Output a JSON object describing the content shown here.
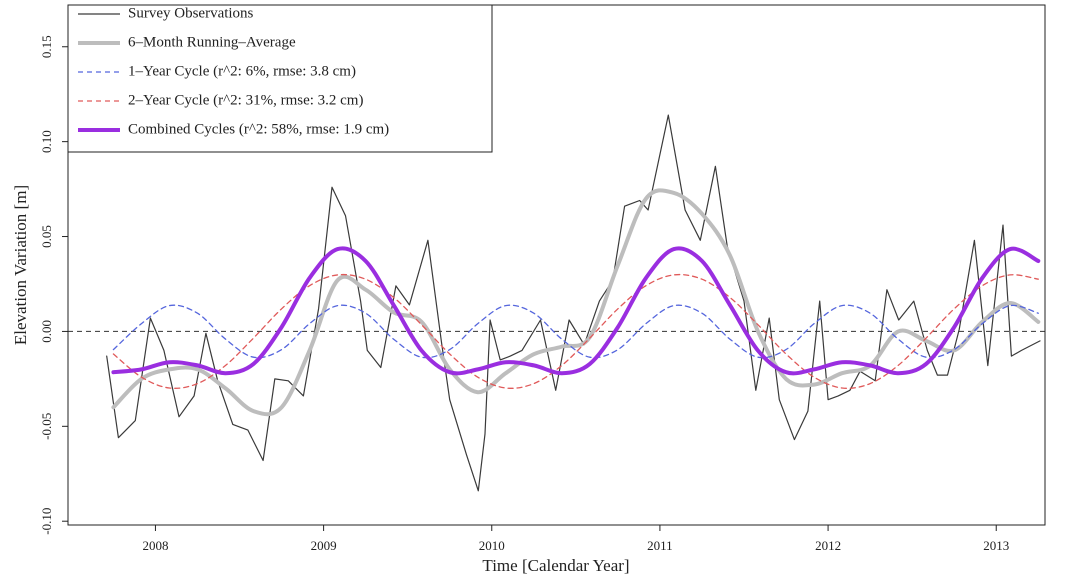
{
  "chart_data": {
    "type": "line",
    "xlabel": "Time [Calendar Year]",
    "ylabel": "Elevation Variation [m]",
    "xlim": [
      2007.48,
      2013.29
    ],
    "ylim": [
      -0.102,
      0.172
    ],
    "xticks": [
      2008,
      2009,
      2010,
      2011,
      2012,
      2013
    ],
    "yticks": [
      {
        "value": -0.1,
        "label": "-0.10"
      },
      -0.05,
      {
        "value": 0,
        "label": "0.00"
      },
      0.05,
      {
        "value": 0.1,
        "label": "0.10"
      },
      0.15
    ],
    "reference_line": 0,
    "legend": "upper left",
    "x": [
      2007.75,
      2007.917,
      2008.083,
      2008.25,
      2008.417,
      2008.583,
      2008.75,
      2008.917,
      2009.083,
      2009.25,
      2009.417,
      2009.583,
      2009.75,
      2009.917,
      2010.083,
      2010.25,
      2010.417,
      2010.583,
      2010.75,
      2010.917,
      2011.083,
      2011.25,
      2011.417,
      2011.583,
      2011.75,
      2011.917,
      2012.083,
      2012.25,
      2012.417,
      2012.583,
      2012.75,
      2012.917,
      2013.083,
      2013.25
    ],
    "series": [
      {
        "name": "Survey Observations",
        "color": "#3a3a3a",
        "width": 1.2,
        "dash": false,
        "smooth": false,
        "x": [
          2007.71,
          2007.78,
          2007.88,
          2007.97,
          2008.05,
          2008.14,
          2008.23,
          2008.3,
          2008.37,
          2008.46,
          2008.55,
          2008.64,
          2008.71,
          2008.79,
          2008.88,
          2008.97,
          2009.05,
          2009.13,
          2009.22,
          2009.26,
          2009.34,
          2009.43,
          2009.51,
          2009.62,
          2009.7,
          2009.75,
          2009.85,
          2009.92,
          2009.96,
          2009.99,
          2010.05,
          2010.11,
          2010.18,
          2010.29,
          2010.38,
          2010.46,
          2010.55,
          2010.64,
          2010.72,
          2010.79,
          2010.88,
          2010.93,
          2011.05,
          2011.15,
          2011.24,
          2011.33,
          2011.4,
          2011.5,
          2011.57,
          2011.65,
          2011.71,
          2011.8,
          2011.88,
          2011.95,
          2012.0,
          2012.06,
          2012.13,
          2012.19,
          2012.28,
          2012.35,
          2012.42,
          2012.51,
          2012.59,
          2012.65,
          2012.71,
          2012.78,
          2012.87,
          2012.95,
          2013.04,
          2013.09,
          2013.15,
          2013.26
        ],
        "values": [
          -0.013,
          -0.056,
          -0.047,
          0.007,
          -0.01,
          -0.045,
          -0.034,
          -0.001,
          -0.026,
          -0.049,
          -0.052,
          -0.068,
          -0.025,
          -0.026,
          -0.034,
          0.012,
          0.076,
          0.061,
          0.016,
          -0.01,
          -0.019,
          0.024,
          0.014,
          0.048,
          -0.005,
          -0.036,
          -0.065,
          -0.084,
          -0.054,
          0.006,
          -0.015,
          -0.013,
          -0.01,
          0.006,
          -0.031,
          0.006,
          -0.007,
          0.016,
          0.027,
          0.066,
          0.069,
          0.064,
          0.114,
          0.064,
          0.048,
          0.087,
          0.045,
          0.016,
          -0.031,
          0.007,
          -0.036,
          -0.057,
          -0.042,
          0.016,
          -0.036,
          -0.034,
          -0.031,
          -0.021,
          -0.026,
          0.022,
          0.006,
          0.016,
          -0.01,
          -0.023,
          -0.023,
          0.001,
          0.048,
          -0.018,
          0.056,
          -0.013,
          -0.01,
          -0.005
        ]
      },
      {
        "name": "6–Month Running–Average",
        "color": "#bdbdbd",
        "width": 4,
        "dash": false,
        "smooth": true,
        "values": [
          -0.04,
          -0.025,
          -0.02,
          -0.02,
          -0.03,
          -0.042,
          -0.04,
          -0.01,
          0.027,
          0.022,
          0.01,
          0.005,
          -0.02,
          -0.032,
          -0.022,
          -0.012,
          -0.008,
          -0.003,
          0.035,
          0.07,
          0.073,
          0.062,
          0.04,
          0.0,
          -0.025,
          -0.028,
          -0.022,
          -0.018,
          0.0,
          -0.005,
          -0.01,
          0.005,
          0.015,
          0.005
        ]
      },
      {
        "name": "1–Year Cycle (r^2: 6%, rmse: 3.8 cm)",
        "color": "#5566dd",
        "width": 1.3,
        "dash": true,
        "smooth": true,
        "values": [
          -0.0096,
          0.0041,
          0.0136,
          0.0096,
          -0.0041,
          -0.0136,
          -0.0096,
          0.0041,
          0.0136,
          0.0096,
          -0.0041,
          -0.0136,
          -0.0096,
          0.0041,
          0.0136,
          0.0096,
          -0.0041,
          -0.0136,
          -0.0096,
          0.0041,
          0.0136,
          0.0096,
          -0.0041,
          -0.0136,
          -0.0096,
          0.0041,
          0.0136,
          0.0096,
          -0.0041,
          -0.0136,
          -0.0096,
          0.0041,
          0.0136,
          0.0096
        ]
      },
      {
        "name": "2–Year Cycle (r^2: 31%, rmse: 3.2 cm)",
        "color": "#e05a5a",
        "width": 1.3,
        "dash": true,
        "smooth": true,
        "values": [
          -0.0119,
          -0.0241,
          -0.0298,
          -0.0275,
          -0.0179,
          -0.0035,
          0.0119,
          0.0241,
          0.0298,
          0.0275,
          0.0179,
          0.0035,
          -0.0119,
          -0.0241,
          -0.0298,
          -0.0275,
          -0.0179,
          -0.0035,
          0.0119,
          0.0241,
          0.0298,
          0.0275,
          0.0179,
          0.0035,
          -0.0119,
          -0.0241,
          -0.0298,
          -0.0275,
          -0.0179,
          -0.0035,
          0.0119,
          0.0241,
          0.0298,
          0.0275
        ]
      },
      {
        "name": "Combined Cycles (r^2: 58%, rmse: 1.9 cm)",
        "color": "#9a2ee0",
        "width": 4,
        "dash": false,
        "smooth": true,
        "values": [
          -0.0215,
          -0.02,
          -0.0162,
          -0.0179,
          -0.022,
          -0.0171,
          0.0023,
          0.0282,
          0.0434,
          0.0371,
          0.0138,
          -0.0101,
          -0.0215,
          -0.02,
          -0.0162,
          -0.0179,
          -0.022,
          -0.0171,
          0.0023,
          0.0282,
          0.0434,
          0.0371,
          0.0138,
          -0.0101,
          -0.0215,
          -0.02,
          -0.0162,
          -0.0179,
          -0.022,
          -0.0171,
          0.0023,
          0.0282,
          0.0434,
          0.0371
        ]
      }
    ]
  }
}
